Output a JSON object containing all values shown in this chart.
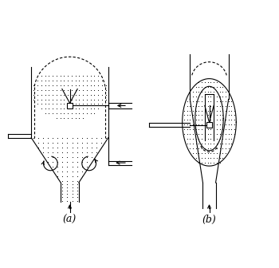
{
  "bg_color": "#ffffff",
  "lc": "#000000",
  "dot_color": "#444444",
  "label_a": "(a)",
  "label_b": "(b)",
  "figsize": [
    3.5,
    3.36
  ],
  "dpi": 100,
  "lw": 0.8,
  "dot_size": 1.8
}
